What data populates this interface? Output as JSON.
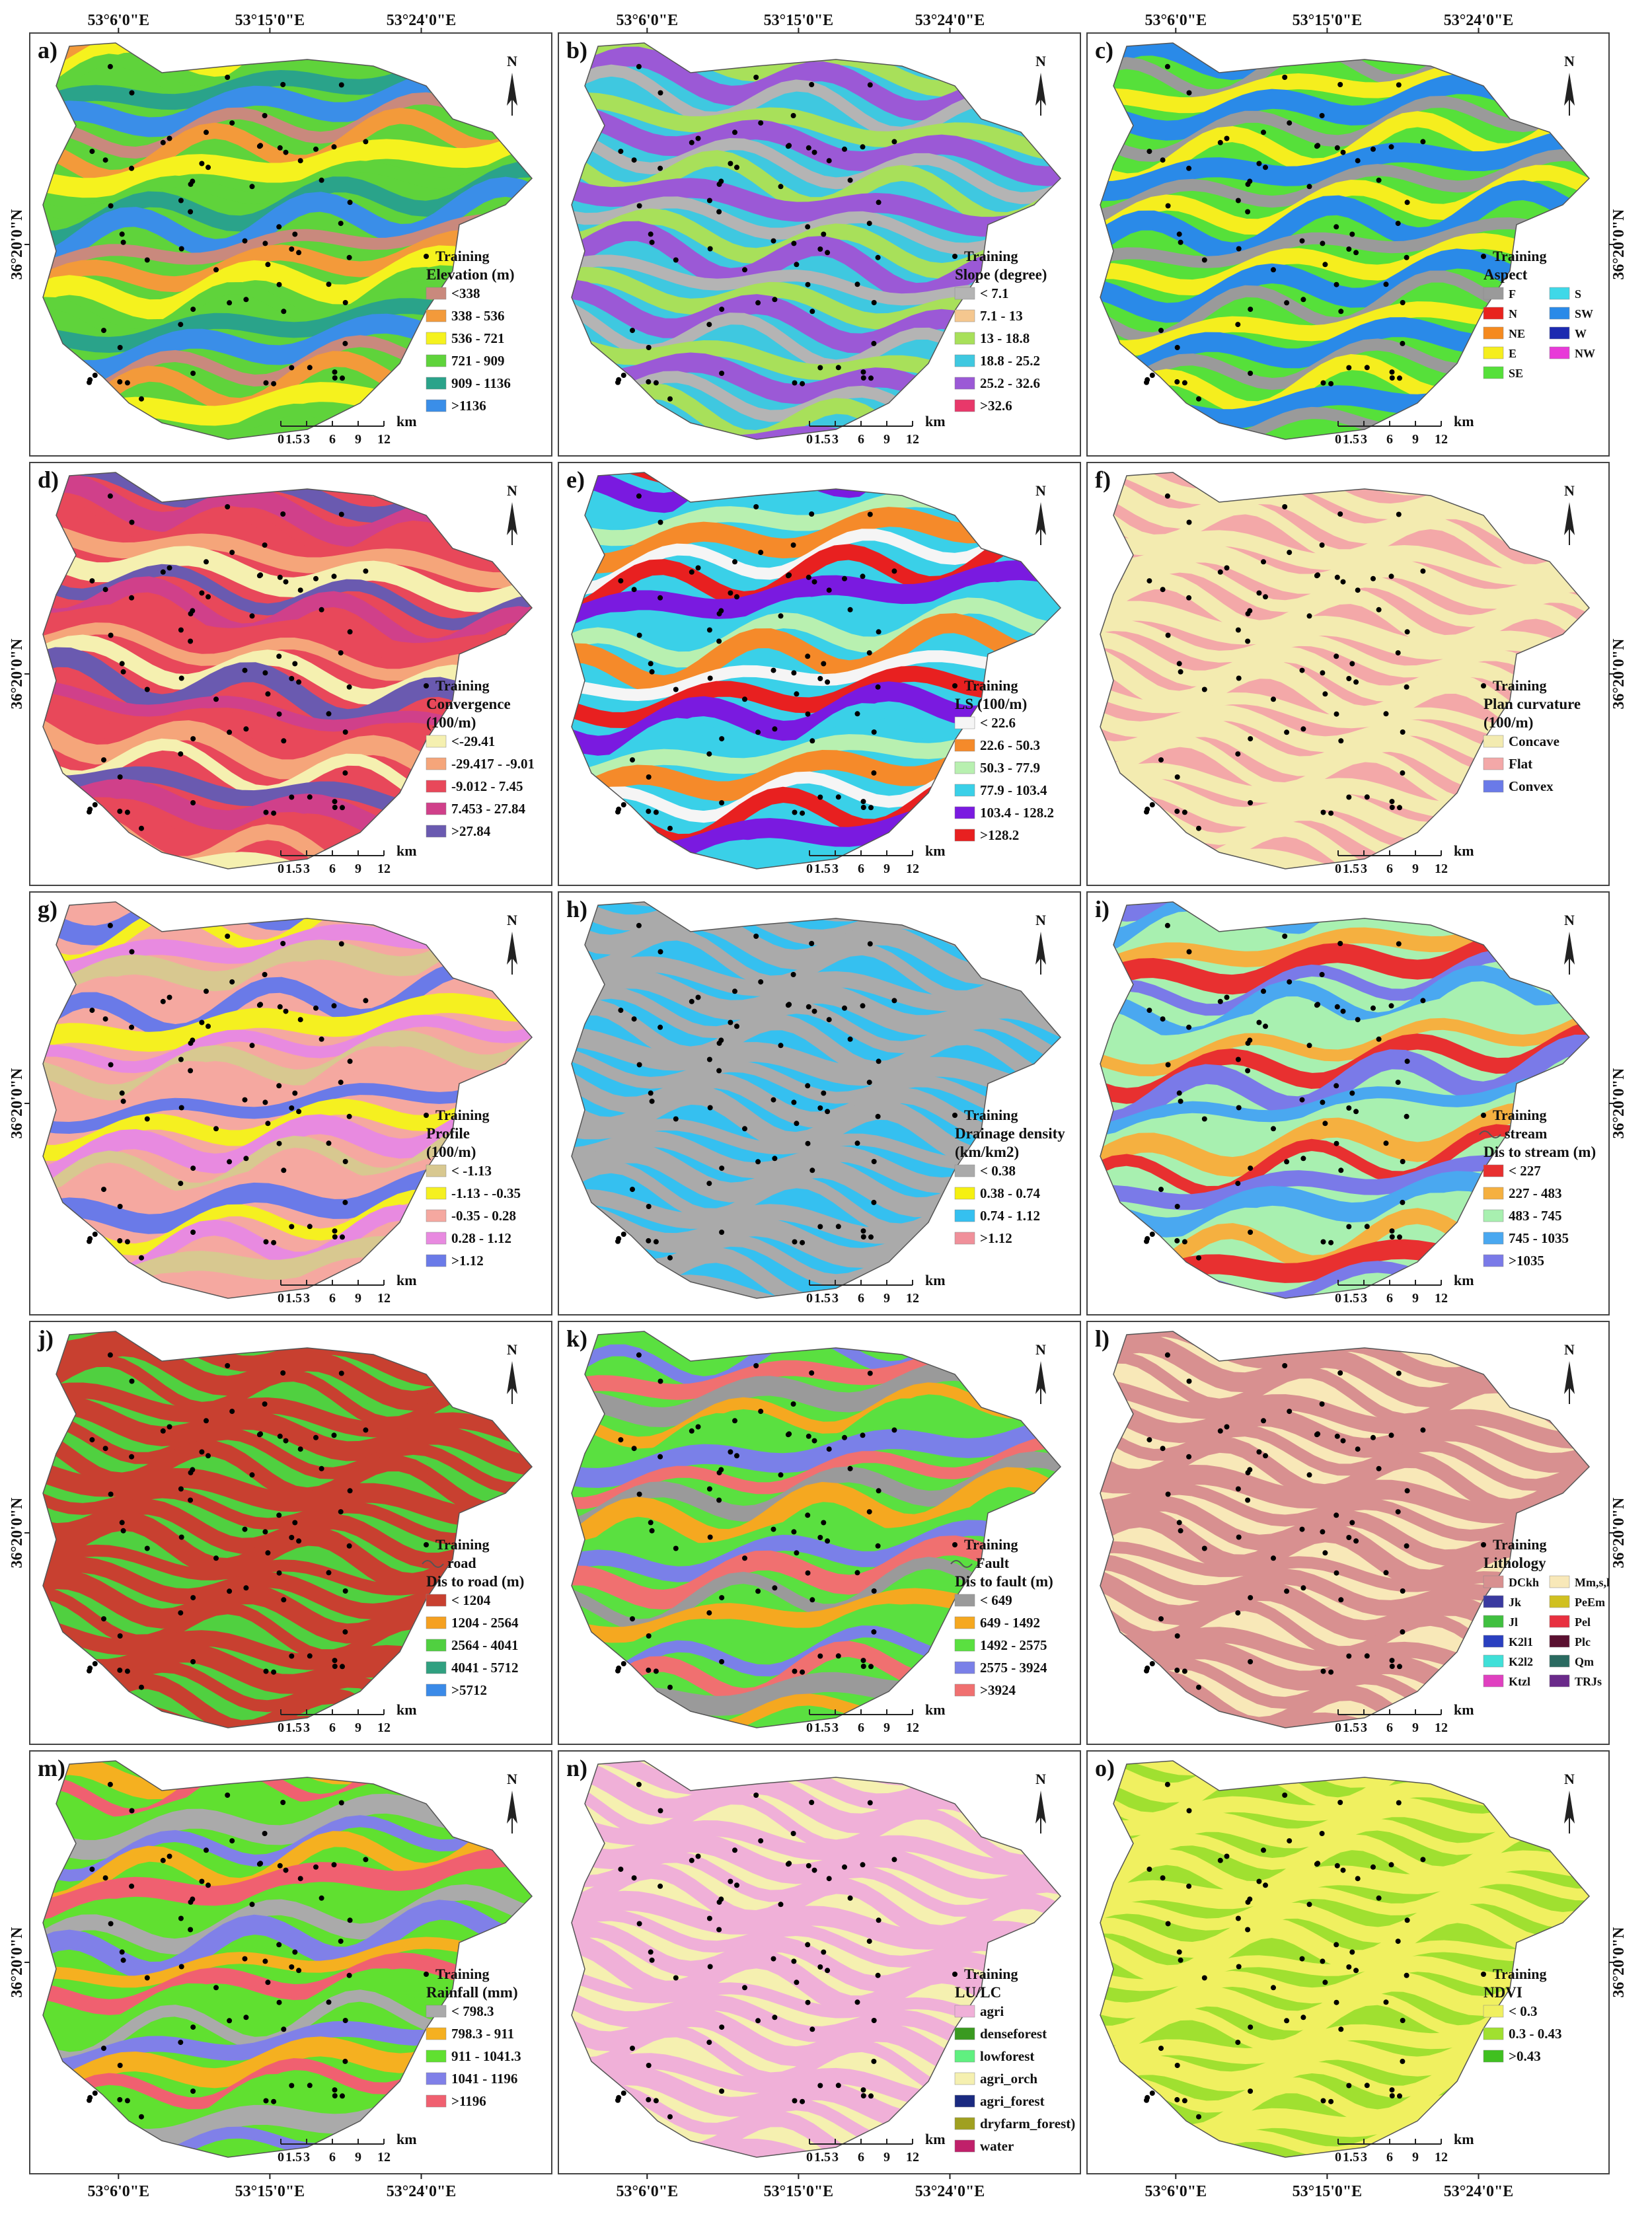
{
  "lon_labels": [
    "53°6'0\"E",
    "53°15'0\"E",
    "53°24'0\"E"
  ],
  "lat_label": "36°20'0\"N",
  "north": "N",
  "scale": {
    "ticks": [
      "0",
      "1.5",
      "3",
      "6",
      "9",
      "12"
    ],
    "unit": "km"
  },
  "panels": [
    {
      "label": "a)",
      "training": "Training",
      "title": [
        "Elevation (m)"
      ],
      "items": [
        {
          "label": "<338",
          "color": "#c9897d"
        },
        {
          "label": "338 - 536",
          "color": "#f39a3a"
        },
        {
          "label": "536 - 721",
          "color": "#f5f21e"
        },
        {
          "label": "721 - 909",
          "color": "#5fd33b"
        },
        {
          "label": "909 - 1136",
          "color": "#2aa38a"
        },
        {
          "label": ">1136",
          "color": "#3a8ee8"
        }
      ]
    },
    {
      "label": "b)",
      "training": "Training",
      "title": [
        "Slope (degree)"
      ],
      "items": [
        {
          "label": "< 7.1",
          "color": "#b4b4b4"
        },
        {
          "label": "7.1 - 13",
          "color": "#f5c78f"
        },
        {
          "label": "13 - 18.8",
          "color": "#a8e05a"
        },
        {
          "label": "18.8 - 25.2",
          "color": "#3fc8e0"
        },
        {
          "label": "25.2 - 32.6",
          "color": "#9b59d6"
        },
        {
          "label": ">32.6",
          "color": "#e8386a"
        }
      ]
    },
    {
      "label": "c)",
      "training": "Training",
      "title": [
        "Aspect"
      ],
      "items": [
        {
          "label": "F",
          "color": "#9a9a9a"
        },
        {
          "label": "N",
          "color": "#e8231d"
        },
        {
          "label": "NE",
          "color": "#f58a1f"
        },
        {
          "label": "E",
          "color": "#f5ee1e"
        },
        {
          "label": "SE",
          "color": "#56e03a"
        },
        {
          "label": "S",
          "color": "#3fd8e8"
        },
        {
          "label": "SW",
          "color": "#2a8ae8"
        },
        {
          "label": "W",
          "color": "#1c2ab0"
        },
        {
          "label": "NW",
          "color": "#e83ad8"
        }
      ]
    },
    {
      "label": "d)",
      "training": "Training",
      "title": [
        "Convergence",
        "(100/m)"
      ],
      "items": [
        {
          "label": "<-29.41",
          "color": "#f5f0b0"
        },
        {
          "label": "-29.417 - -9.01",
          "color": "#f5a57a"
        },
        {
          "label": "-9.012 - 7.45",
          "color": "#e8485a"
        },
        {
          "label": "7.453 - 27.84",
          "color": "#d0408a"
        },
        {
          "label": ">27.84",
          "color": "#6a5ab0"
        }
      ]
    },
    {
      "label": "e)",
      "training": "Training",
      "title": [
        "LS (100/m)"
      ],
      "items": [
        {
          "label": "< 22.6",
          "color": "#f5f5f5"
        },
        {
          "label": "22.6 - 50.3",
          "color": "#f58a2a"
        },
        {
          "label": "50.3 - 77.9",
          "color": "#b8f0b0"
        },
        {
          "label": "77.9 - 103.4",
          "color": "#3ad0e8"
        },
        {
          "label": "103.4 - 128.2",
          "color": "#7a1ae0"
        },
        {
          "label": ">128.2",
          "color": "#e82020"
        }
      ]
    },
    {
      "label": "f)",
      "training": "Training",
      "title": [
        "Plan curvature",
        "(100/m)"
      ],
      "items": [
        {
          "label": "Concave",
          "color": "#f3ebb0"
        },
        {
          "label": "Flat",
          "color": "#f3a8a8"
        },
        {
          "label": "Convex",
          "color": "#6a7ae8"
        }
      ]
    },
    {
      "label": "g)",
      "training": "Training",
      "title": [
        "Profile",
        "(100/m)"
      ],
      "items": [
        {
          "label": "< -1.13",
          "color": "#d8c890"
        },
        {
          "label": "-1.13 - -0.35",
          "color": "#f5f020"
        },
        {
          "label": "-0.35 - 0.28",
          "color": "#f5a8a0"
        },
        {
          "label": "0.28 - 1.12",
          "color": "#e88ae0"
        },
        {
          "label": ">1.12",
          "color": "#6a7ae8"
        }
      ]
    },
    {
      "label": "h)",
      "training": "Training",
      "title": [
        "Drainage density",
        "(km/km2)"
      ],
      "items": [
        {
          "label": "< 0.38",
          "color": "#aaaaaa"
        },
        {
          "label": "0.38 - 0.74",
          "color": "#f5f010"
        },
        {
          "label": "0.74 - 1.12",
          "color": "#35c0f0"
        },
        {
          "label": ">1.12",
          "color": "#f0909a"
        }
      ]
    },
    {
      "label": "i)",
      "training": "Training",
      "line": "stream",
      "title": [
        "Dis to stream (m)"
      ],
      "items": [
        {
          "label": "< 227",
          "color": "#e83030"
        },
        {
          "label": "227 - 483",
          "color": "#f5b040"
        },
        {
          "label": "483 - 745",
          "color": "#a8f0b0"
        },
        {
          "label": "745 - 1035",
          "color": "#4aa8f0"
        },
        {
          "label": ">1035",
          "color": "#7a7ae8"
        }
      ]
    },
    {
      "label": "j)",
      "training": "Training",
      "line": "road",
      "title": [
        "Dis to road (m)"
      ],
      "items": [
        {
          "label": "< 1204",
          "color": "#c84030"
        },
        {
          "label": "1204 - 2564",
          "color": "#f5a020"
        },
        {
          "label": "2564 - 4041",
          "color": "#50d040"
        },
        {
          "label": "4041 - 5712",
          "color": "#30a080"
        },
        {
          "label": ">5712",
          "color": "#3a8ae8"
        }
      ]
    },
    {
      "label": "k)",
      "training": "Training",
      "line": "Fault",
      "title": [
        "Dis to fault (m)"
      ],
      "items": [
        {
          "label": "< 649",
          "color": "#9a9a9a"
        },
        {
          "label": "649 - 1492",
          "color": "#f5a820"
        },
        {
          "label": "1492 - 2575",
          "color": "#5ae040"
        },
        {
          "label": "2575 - 3924",
          "color": "#7a80e8"
        },
        {
          "label": ">3924",
          "color": "#f07070"
        }
      ]
    },
    {
      "label": "l)",
      "training": "Training",
      "title": [
        "Lithology"
      ],
      "items": [
        {
          "label": "DCkh",
          "color": "#d89090"
        },
        {
          "label": "Jk",
          "color": "#3a3aa0"
        },
        {
          "label": "Jl",
          "color": "#40c040"
        },
        {
          "label": "K2l1",
          "color": "#2a40c0"
        },
        {
          "label": "K2l2",
          "color": "#40e0d8"
        },
        {
          "label": "Ktzl",
          "color": "#e040c0"
        },
        {
          "label": "Mm,s,l",
          "color": "#f8e8b8"
        },
        {
          "label": "PeEm",
          "color": "#d0c020"
        },
        {
          "label": "Pel",
          "color": "#e83040"
        },
        {
          "label": "Plc",
          "color": "#5a1030"
        },
        {
          "label": "Qm",
          "color": "#2a6a60"
        },
        {
          "label": "TRJs",
          "color": "#6a2a8a"
        }
      ]
    },
    {
      "label": "m)",
      "training": "Training",
      "title": [
        "Rainfall (mm)"
      ],
      "items": [
        {
          "label": "< 798.3",
          "color": "#aaaaaa"
        },
        {
          "label": "798.3 - 911",
          "color": "#f5b020"
        },
        {
          "label": "911 - 1041.3",
          "color": "#60e030"
        },
        {
          "label": "1041 - 1196",
          "color": "#8080e8"
        },
        {
          "label": ">1196",
          "color": "#f06070"
        }
      ]
    },
    {
      "label": "n)",
      "training": "Training",
      "title": [
        "LU/LC"
      ],
      "items": [
        {
          "label": "agri",
          "color": "#f0b0d8"
        },
        {
          "label": "denseforest",
          "color": "#3a9a20"
        },
        {
          "label": "lowforest",
          "color": "#60f080"
        },
        {
          "label": "agri_orch",
          "color": "#f5f0b0"
        },
        {
          "label": "agri_forest",
          "color": "#1a2a80"
        },
        {
          "label": "dryfarm_forest)",
          "color": "#a0a020"
        },
        {
          "label": "water",
          "color": "#c0206a"
        }
      ]
    },
    {
      "label": "o)",
      "training": "Training",
      "title": [
        "NDVI"
      ],
      "items": [
        {
          "label": "< 0.3",
          "color": "#f0f060"
        },
        {
          "label": "0.3 - 0.43",
          "color": "#a0e030"
        },
        {
          "label": ">0.43",
          "color": "#40c020"
        }
      ]
    }
  ]
}
